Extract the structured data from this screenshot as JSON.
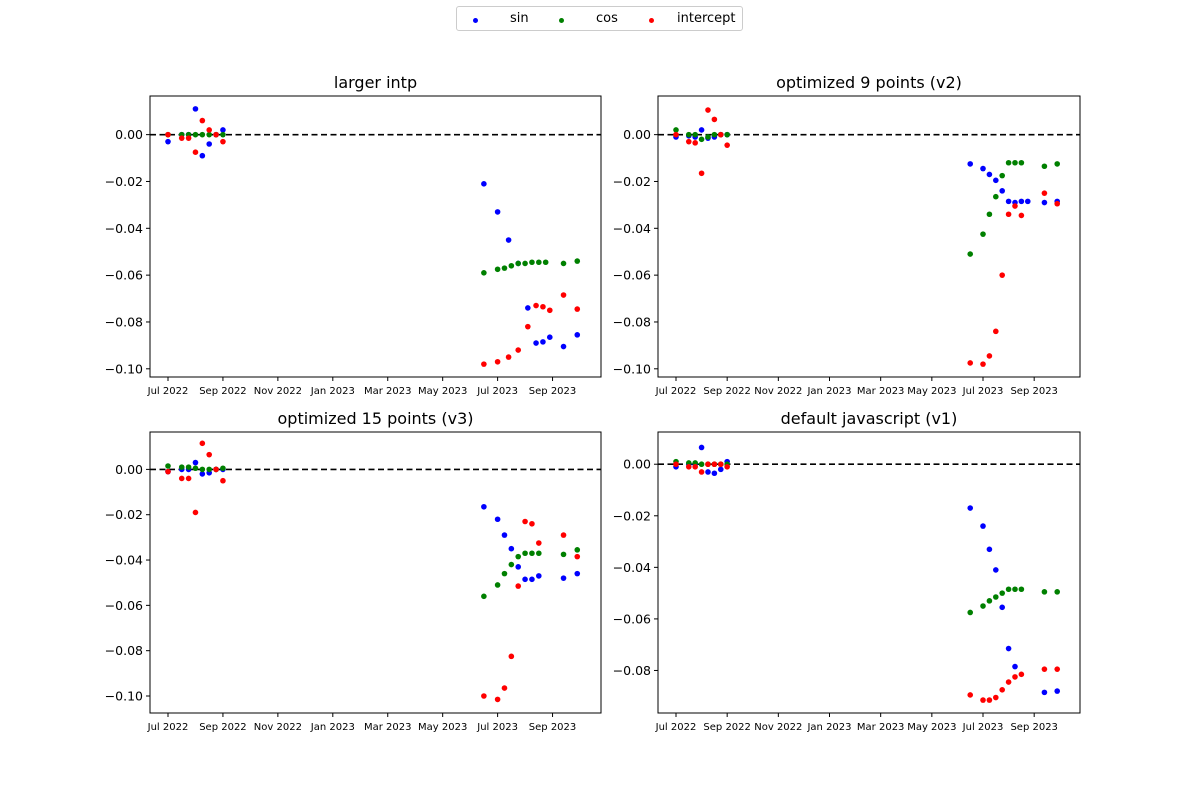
{
  "legend": {
    "items": [
      {
        "name": "sin",
        "color": "#0000ff"
      },
      {
        "name": "cos",
        "color": "#008000"
      },
      {
        "name": "intercept",
        "color": "#ff0000"
      }
    ]
  },
  "chart_data": [
    {
      "type": "scatter",
      "title": "larger intp",
      "x_ticks": [
        "Jul 2022",
        "Sep 2022",
        "Nov 2022",
        "Jan 2023",
        "Mar 2023",
        "May 2023",
        "Jul 2023",
        "Sep 2023"
      ],
      "y_ticks": [
        "0.00",
        "−0.02",
        "−0.04",
        "−0.06",
        "−0.08",
        "−0.10"
      ],
      "xlim": [
        0,
        15.4
      ],
      "ylim": [
        -0.1035,
        0.0165
      ],
      "baseline": 0,
      "series": [
        {
          "name": "sin",
          "color": "#0000ff",
          "x": [
            0,
            0.5,
            0.75,
            1.0,
            1.25,
            1.5,
            1.75,
            2.0,
            11.5,
            12.0,
            12.4,
            12.75,
            13.1,
            13.4,
            13.65,
            13.9,
            14.4,
            14.9
          ],
          "y": [
            -0.003,
            0,
            0,
            0.011,
            -0.009,
            -0.004,
            0,
            0.002,
            -0.021,
            -0.033,
            -0.045,
            -0.055,
            -0.074,
            -0.089,
            -0.0885,
            -0.0865,
            -0.0905,
            -0.0855
          ]
        },
        {
          "name": "cos",
          "color": "#008000",
          "x": [
            0,
            0.5,
            0.75,
            1.0,
            1.25,
            1.5,
            1.75,
            2.0,
            11.5,
            12.0,
            12.25,
            12.5,
            12.75,
            13.0,
            13.25,
            13.5,
            13.75,
            14.4,
            14.9
          ],
          "y": [
            0,
            0,
            0,
            0,
            0,
            0,
            0,
            0,
            -0.059,
            -0.0575,
            -0.057,
            -0.056,
            -0.055,
            -0.055,
            -0.0545,
            -0.0545,
            -0.0545,
            -0.055,
            -0.054
          ]
        },
        {
          "name": "intercept",
          "color": "#ff0000",
          "x": [
            0,
            0.5,
            0.75,
            1.0,
            1.25,
            1.5,
            1.75,
            2.0,
            11.5,
            12.0,
            12.4,
            12.75,
            13.1,
            13.4,
            13.65,
            13.9,
            14.4,
            14.9
          ],
          "y": [
            0,
            -0.0015,
            -0.0015,
            -0.0075,
            0.006,
            0.002,
            0,
            -0.003,
            -0.098,
            -0.097,
            -0.095,
            -0.092,
            -0.082,
            -0.073,
            -0.0735,
            -0.075,
            -0.0685,
            -0.0745
          ]
        }
      ]
    },
    {
      "type": "scatter",
      "title": "optimized 9 points (v2)",
      "x_ticks": [
        "Jul 2022",
        "Sep 2022",
        "Nov 2022",
        "Jan 2023",
        "Mar 2023",
        "May 2023",
        "Jul 2023",
        "Sep 2023"
      ],
      "y_ticks": [
        "0.00",
        "−0.02",
        "−0.04",
        "−0.06",
        "−0.08",
        "−0.10"
      ],
      "xlim": [
        0,
        15.4
      ],
      "ylim": [
        -0.1035,
        0.0165
      ],
      "baseline": 0,
      "series": [
        {
          "name": "sin",
          "color": "#0000ff",
          "x": [
            0,
            0.5,
            0.75,
            1.0,
            1.25,
            1.5,
            1.75,
            2.0,
            11.5,
            12.0,
            12.25,
            12.5,
            12.75,
            13.0,
            13.25,
            13.5,
            13.75,
            14.4,
            14.9
          ],
          "y": [
            -0.001,
            -0.0005,
            -0.001,
            0.002,
            -0.0015,
            -0.001,
            0,
            0,
            -0.0125,
            -0.0145,
            -0.017,
            -0.0195,
            -0.024,
            -0.0285,
            -0.029,
            -0.0285,
            -0.0285,
            -0.029,
            -0.0285
          ]
        },
        {
          "name": "cos",
          "color": "#008000",
          "x": [
            0,
            0.5,
            0.75,
            1.0,
            1.25,
            1.5,
            1.75,
            2.0,
            11.5,
            12.0,
            12.25,
            12.5,
            12.75,
            13.0,
            13.25,
            13.5,
            14.4,
            14.9
          ],
          "y": [
            0.002,
            0,
            0,
            -0.002,
            -0.001,
            0,
            0,
            0,
            -0.051,
            -0.0425,
            -0.034,
            -0.0265,
            -0.0175,
            -0.012,
            -0.012,
            -0.012,
            -0.0135,
            -0.0125
          ]
        },
        {
          "name": "intercept",
          "color": "#ff0000",
          "x": [
            0,
            0.5,
            0.75,
            1.0,
            1.25,
            1.5,
            1.75,
            2.0,
            11.5,
            12.0,
            12.25,
            12.5,
            12.75,
            13.0,
            13.25,
            13.5,
            14.4,
            14.9
          ],
          "y": [
            0,
            -0.003,
            -0.0035,
            -0.0165,
            0.0105,
            0.0065,
            0,
            -0.0045,
            -0.0975,
            -0.098,
            -0.0945,
            -0.084,
            -0.06,
            -0.034,
            -0.0305,
            -0.0345,
            -0.025,
            -0.0295
          ]
        }
      ]
    },
    {
      "type": "scatter",
      "title": "optimized 15 points (v3)",
      "x_ticks": [
        "Jul 2022",
        "Sep 2022",
        "Nov 2022",
        "Jan 2023",
        "Mar 2023",
        "May 2023",
        "Jul 2023",
        "Sep 2023"
      ],
      "y_ticks": [
        "0.00",
        "−0.02",
        "−0.04",
        "−0.06",
        "−0.08",
        "−0.10"
      ],
      "xlim": [
        0,
        15.4
      ],
      "ylim": [
        -0.1075,
        0.0165
      ],
      "baseline": 0,
      "series": [
        {
          "name": "sin",
          "color": "#0000ff",
          "x": [
            0,
            0.5,
            0.75,
            1.0,
            1.25,
            1.5,
            1.75,
            2.0,
            11.5,
            12.0,
            12.25,
            12.5,
            12.75,
            13.0,
            13.25,
            13.5,
            14.4,
            14.9
          ],
          "y": [
            -0.001,
            0,
            0,
            0.003,
            -0.002,
            -0.0015,
            0,
            0,
            -0.0165,
            -0.022,
            -0.029,
            -0.035,
            -0.043,
            -0.0485,
            -0.0485,
            -0.047,
            -0.048,
            -0.046
          ]
        },
        {
          "name": "cos",
          "color": "#008000",
          "x": [
            0,
            0.5,
            0.75,
            1.0,
            1.25,
            1.5,
            1.75,
            2.0,
            11.5,
            12.0,
            12.25,
            12.5,
            12.75,
            13.0,
            13.25,
            13.5,
            14.4,
            14.9
          ],
          "y": [
            0.0015,
            0.001,
            0.001,
            0.0005,
            0,
            0,
            0,
            0.0005,
            -0.056,
            -0.051,
            -0.046,
            -0.042,
            -0.0385,
            -0.037,
            -0.037,
            -0.037,
            -0.0375,
            -0.0355
          ]
        },
        {
          "name": "intercept",
          "color": "#ff0000",
          "x": [
            0,
            0.5,
            0.75,
            1.0,
            1.25,
            1.5,
            1.75,
            2.0,
            11.5,
            12.0,
            12.25,
            12.5,
            12.75,
            13.0,
            13.25,
            13.5,
            14.4,
            14.9
          ],
          "y": [
            -0.001,
            -0.004,
            -0.004,
            -0.019,
            0.0115,
            0.0065,
            0,
            -0.005,
            -0.1,
            -0.1015,
            -0.0965,
            -0.0825,
            -0.0515,
            -0.023,
            -0.024,
            -0.0325,
            -0.029,
            -0.0385
          ]
        }
      ]
    },
    {
      "type": "scatter",
      "title": "default javascript (v1)",
      "x_ticks": [
        "Jul 2022",
        "Sep 2022",
        "Nov 2022",
        "Jan 2023",
        "Mar 2023",
        "May 2023",
        "Jul 2023",
        "Sep 2023"
      ],
      "y_ticks": [
        "0.00",
        "−0.02",
        "−0.04",
        "−0.06",
        "−0.08"
      ],
      "xlim": [
        0,
        15.4
      ],
      "ylim": [
        -0.0965,
        0.0125
      ],
      "baseline": 0,
      "series": [
        {
          "name": "sin",
          "color": "#0000ff",
          "x": [
            0,
            0.5,
            0.75,
            1.0,
            1.25,
            1.5,
            1.75,
            2.0,
            11.5,
            12.0,
            12.25,
            12.5,
            12.75,
            13.0,
            13.25,
            14.4,
            14.9
          ],
          "y": [
            -0.001,
            0,
            0,
            0.0065,
            -0.003,
            -0.0035,
            -0.002,
            0.001,
            -0.017,
            -0.024,
            -0.033,
            -0.041,
            -0.0555,
            -0.0715,
            -0.0785,
            -0.0885,
            -0.088
          ]
        },
        {
          "name": "cos",
          "color": "#008000",
          "x": [
            0,
            0.5,
            0.75,
            1.0,
            1.25,
            1.5,
            1.75,
            2.0,
            11.5,
            12.0,
            12.25,
            12.5,
            12.75,
            13.0,
            13.25,
            13.5,
            14.4,
            14.9
          ],
          "y": [
            0.001,
            0.0005,
            0.0005,
            0,
            0,
            0,
            0,
            0,
            -0.0575,
            -0.055,
            -0.053,
            -0.0515,
            -0.05,
            -0.0485,
            -0.0485,
            -0.0485,
            -0.0495,
            -0.0495
          ]
        },
        {
          "name": "intercept",
          "color": "#ff0000",
          "x": [
            0,
            0.5,
            0.75,
            1.0,
            1.25,
            1.5,
            1.75,
            2.0,
            11.5,
            12.0,
            12.25,
            12.5,
            12.75,
            13.0,
            13.25,
            13.5,
            14.4,
            14.9
          ],
          "y": [
            0,
            -0.001,
            -0.001,
            -0.003,
            0,
            0,
            0,
            -0.001,
            -0.0895,
            -0.0915,
            -0.0915,
            -0.0905,
            -0.0875,
            -0.0845,
            -0.0825,
            -0.0815,
            -0.0795,
            -0.0795
          ]
        }
      ]
    }
  ]
}
